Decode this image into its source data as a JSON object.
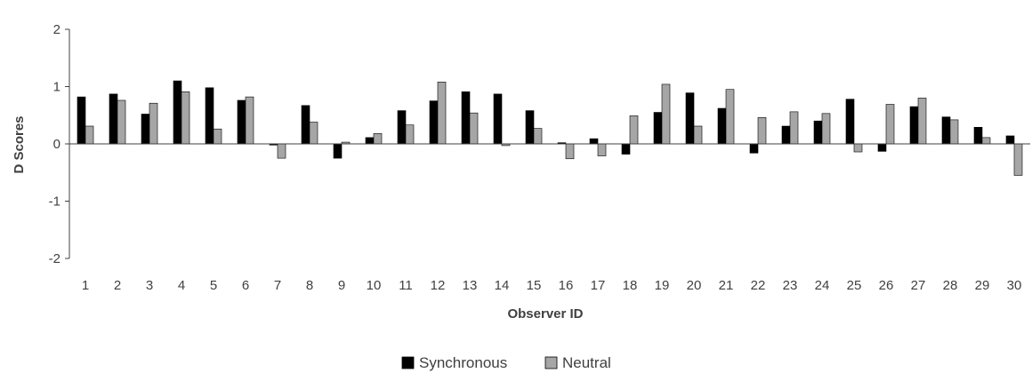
{
  "chart_data": {
    "type": "bar",
    "title": "",
    "xlabel": "Observer ID",
    "ylabel": "D Scores",
    "ylim": [
      -2,
      2
    ],
    "yticks": [
      "2",
      "1",
      "0",
      "-1",
      "-2"
    ],
    "grid": false,
    "legend_position": "bottom",
    "categories": [
      "1",
      "2",
      "3",
      "4",
      "5",
      "6",
      "7",
      "8",
      "9",
      "10",
      "11",
      "12",
      "13",
      "14",
      "15",
      "16",
      "17",
      "18",
      "19",
      "20",
      "21",
      "22",
      "23",
      "24",
      "25",
      "26",
      "27",
      "28",
      "29",
      "30"
    ],
    "series": [
      {
        "name": "Synchronous",
        "color": "#000000",
        "values": [
          0.82,
          0.87,
          0.52,
          1.1,
          0.98,
          0.76,
          -0.02,
          0.67,
          -0.25,
          0.11,
          0.58,
          0.75,
          0.91,
          0.87,
          0.58,
          0.02,
          0.09,
          -0.18,
          0.55,
          0.89,
          0.62,
          -0.16,
          0.31,
          0.4,
          0.78,
          -0.13,
          0.65,
          0.47,
          0.29,
          0.14
        ]
      },
      {
        "name": "Neutral",
        "color": "#a6a6a6",
        "values": [
          0.31,
          0.76,
          0.71,
          0.91,
          0.26,
          0.82,
          -0.25,
          0.38,
          0.03,
          0.18,
          0.33,
          1.08,
          0.54,
          -0.03,
          0.27,
          -0.26,
          -0.21,
          0.49,
          1.04,
          0.31,
          0.95,
          0.46,
          0.56,
          0.53,
          -0.14,
          0.69,
          0.8,
          0.42,
          0.11,
          -0.55
        ]
      }
    ]
  }
}
